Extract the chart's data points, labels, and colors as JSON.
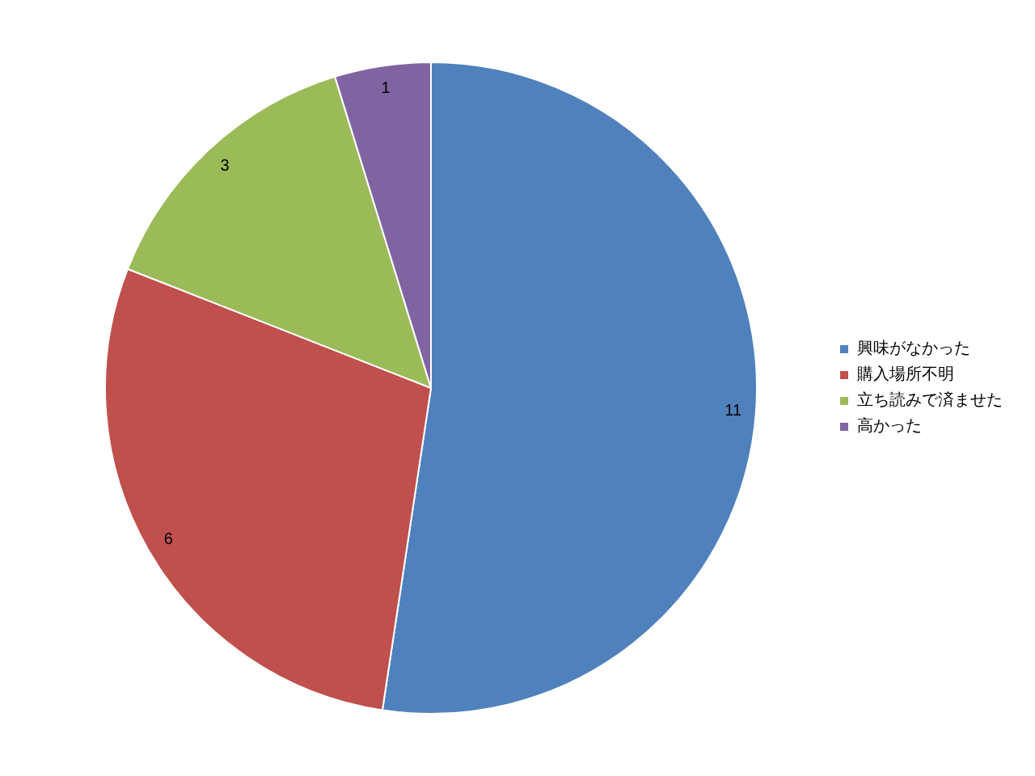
{
  "chart_data": {
    "type": "pie",
    "categories": [
      "興味がなかった",
      "購入場所不明",
      "立ち読みで済ませた",
      "高かった"
    ],
    "values": [
      11,
      6,
      3,
      1
    ],
    "colors": [
      "#4f81bd",
      "#c0504d",
      "#9bbb59",
      "#8064a2"
    ],
    "data_labels": true,
    "legend": "right"
  }
}
